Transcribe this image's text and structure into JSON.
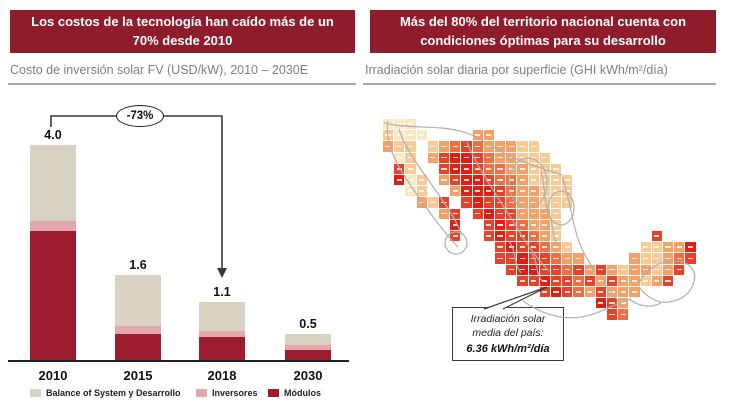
{
  "slide": {
    "left_banner": "Los costos de la tecnología han caído más de un 70% desde 2010",
    "right_banner": "Más del 80% del territorio nacional cuenta con condiciones óptimas para su desarrollo",
    "banner_color": "#8E1C2C"
  },
  "chart_data": [
    {
      "type": "bar",
      "stacked": true,
      "title": "Costo de inversión solar FV (USD/kW), 2010 – 2030E",
      "categories": [
        "2010",
        "2015",
        "2018",
        "2030"
      ],
      "series": [
        {
          "name": "Balance of System y Desarrollo",
          "color": "#D8D2C2",
          "values": [
            1.4,
            0.95,
            0.55,
            0.2
          ]
        },
        {
          "name": "Inversores",
          "color": "#E3A8AE",
          "values": [
            0.2,
            0.15,
            0.1,
            0.1
          ]
        },
        {
          "name": "Módulos",
          "color": "#9D1B2F",
          "values": [
            2.4,
            0.5,
            0.45,
            0.2
          ]
        }
      ],
      "totals": [
        "4.0",
        "1.6",
        "1.1",
        "0.5"
      ],
      "ylim": [
        0,
        4.4
      ],
      "grid": false,
      "legend_position": "bottom",
      "annotation": {
        "label": "-73%",
        "from": "2010",
        "to": "2018"
      }
    },
    {
      "type": "heatmap",
      "title": "Irradiación solar diaria por superficie (GHI kWh/m²/día)",
      "region": "México",
      "unit": "GHI kWh/m²/día",
      "callout": {
        "lines": [
          "Irradiación solar",
          "media del país:"
        ],
        "value": "6.36 kWh/m²/día"
      },
      "palette": {
        "1": "#F8E8C6",
        "2": "#F8CB96",
        "3": "#F4A066",
        "4": "#EE7042",
        "5": "#E74127",
        "6": "#E01E16"
      },
      "tiles": [
        "111.........................",
        "2111....33..................",
        "322.2345433322..............",
        ".12.35665433222.............",
        ".52..56654433222............",
        ".612.356654432222...........",
        "..12..36665433222...........",
        "...325.5655433222...........",
        ".....35.56553332............",
        "......6..5654332............",
        "......5..5655432........5...",
        "..........5655432......22336",
        "..........55655433....322345",
        "...........5665545353233235.",
        "............55655453533235..",
        "..............565435333.....",
        "...................653......",
        "....................54......"
      ]
    }
  ]
}
